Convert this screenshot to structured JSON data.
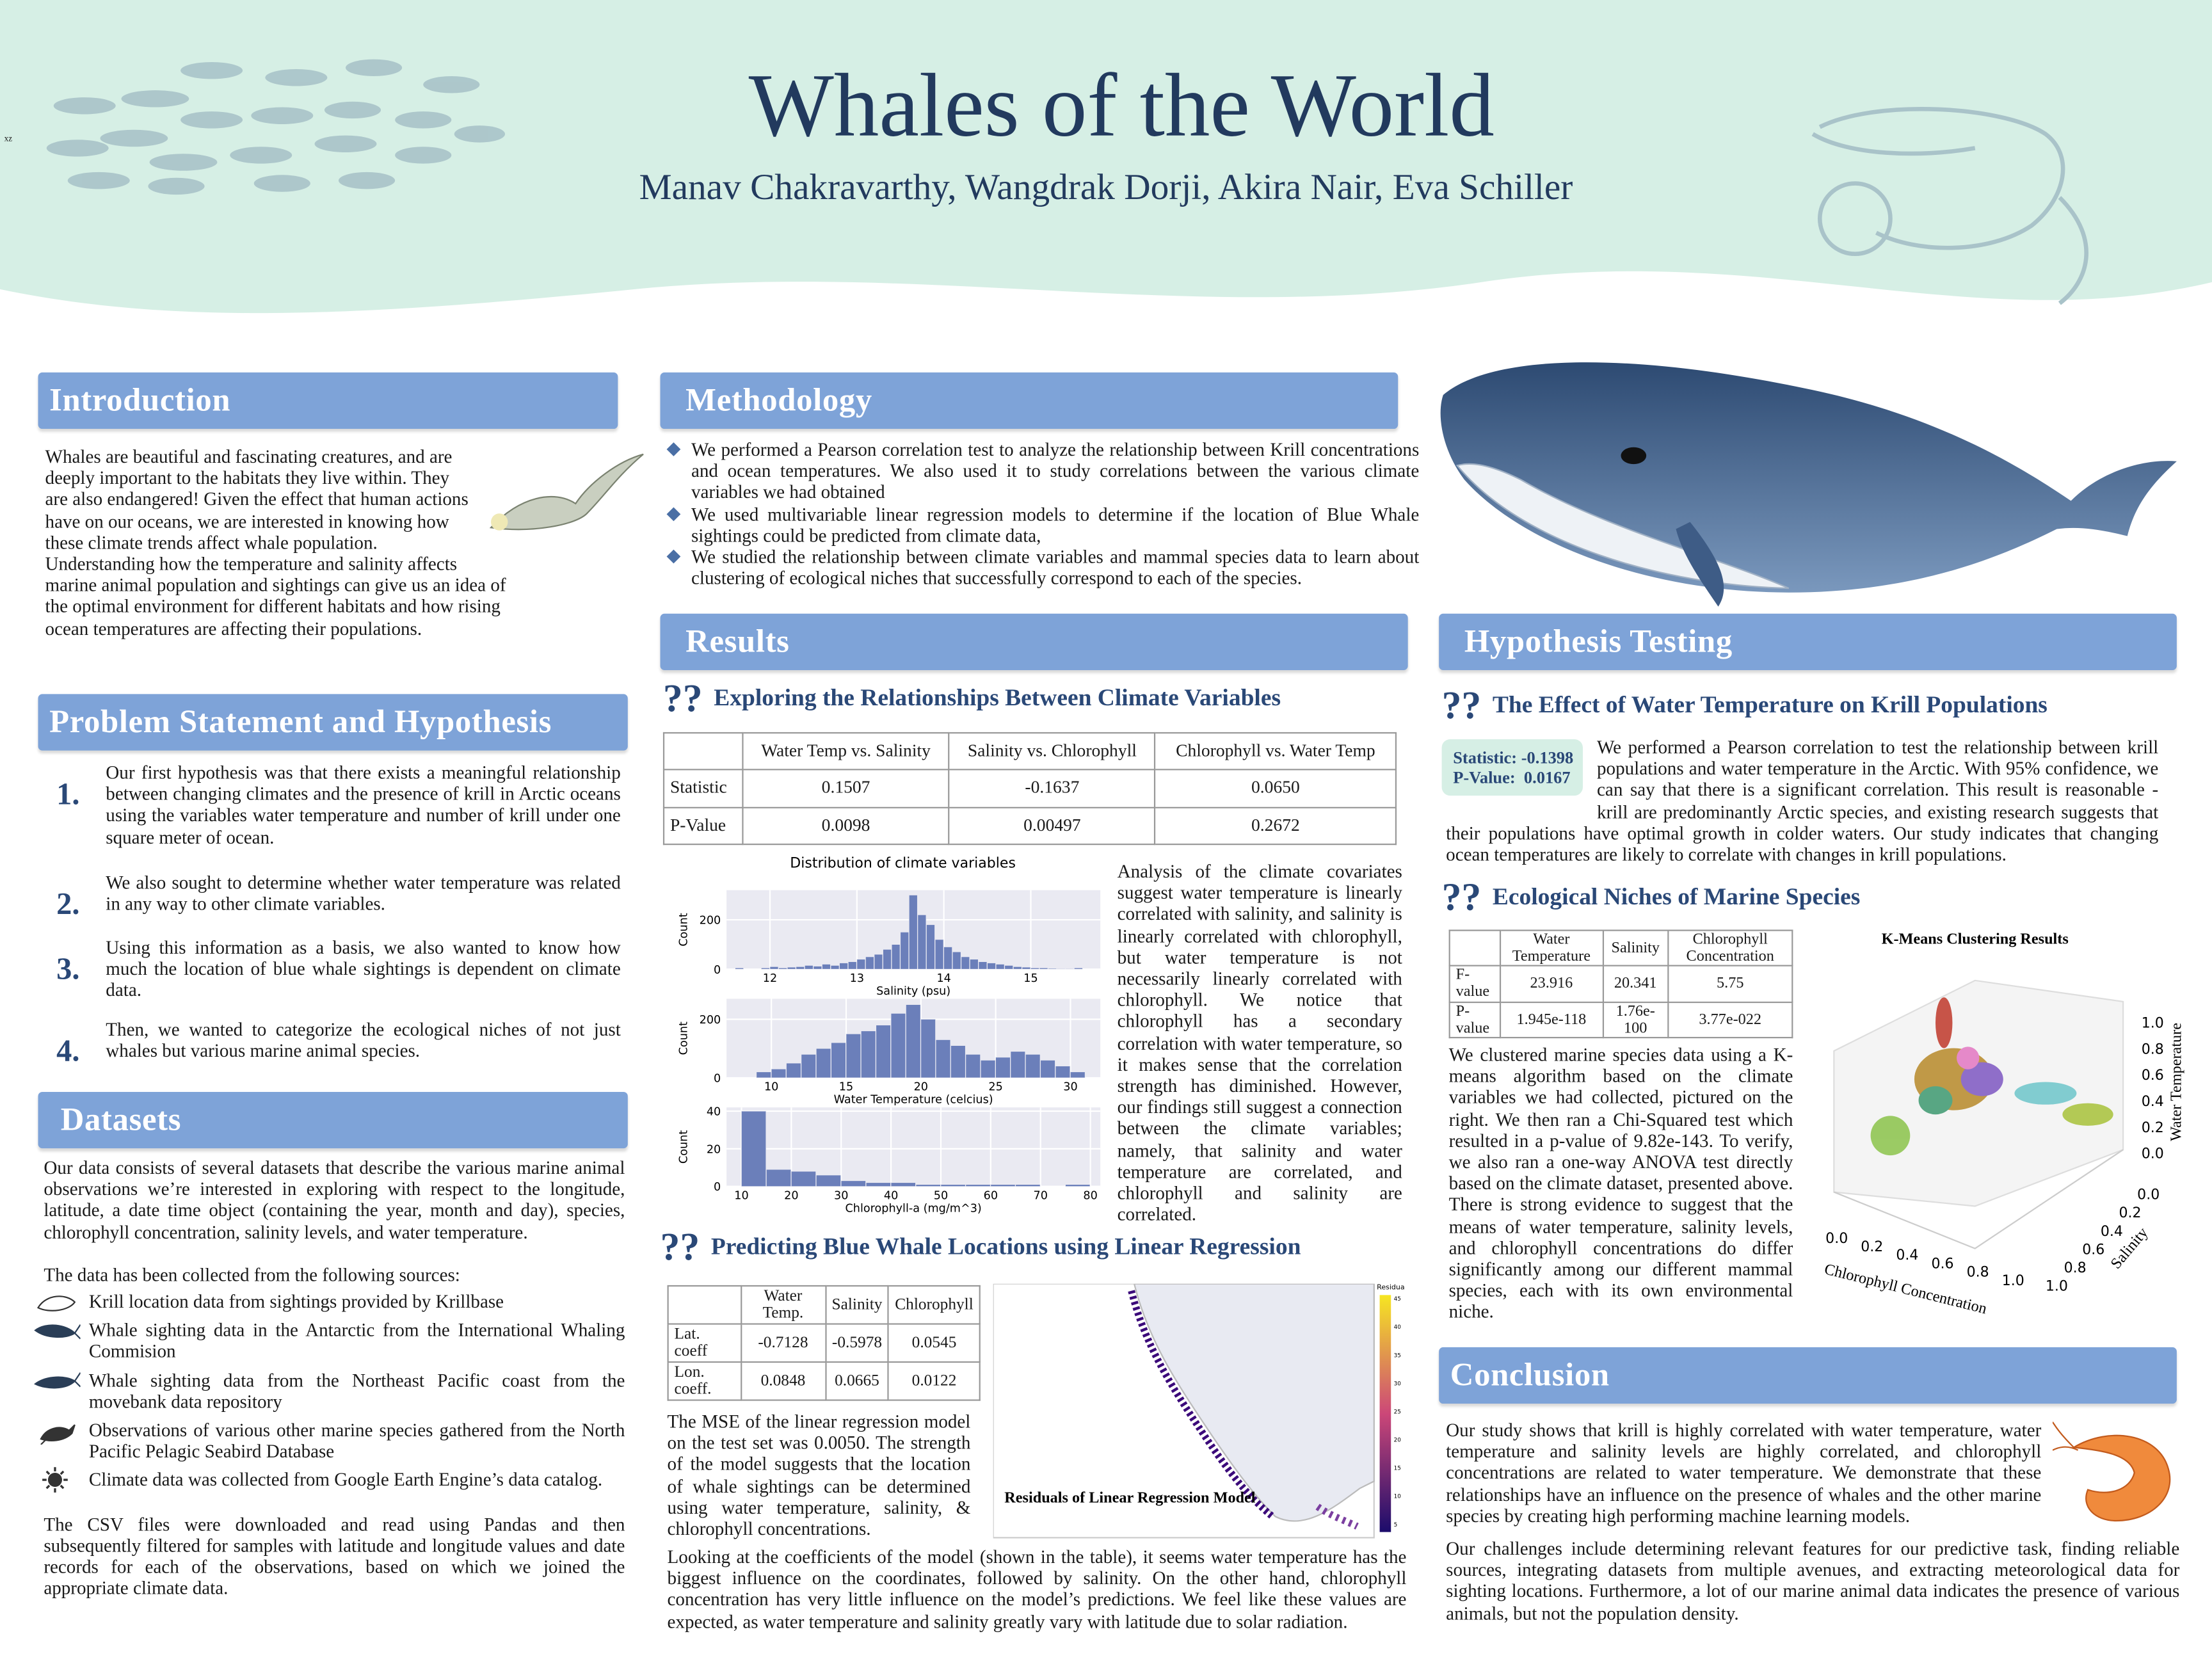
{
  "header": {
    "mark": "xz",
    "title": "Whales of the World",
    "authors": "Manav Chakravarthy, Wangdrak Dorji, Akira Nair, Eva Schiller"
  },
  "introduction": {
    "heading": "Introduction",
    "text": "Whales are beautiful and fascinating creatures, and are deeply important to the habitats they live within. They are also endangered! Given the effect that human actions have on our oceans, we are interested in knowing how these climate trends affect whale population. Understanding how the temperature and salinity affects marine animal population and sightings can give us an idea of the optimal environment for different habitats and how rising ocean temperatures are affecting their populations."
  },
  "problem": {
    "heading": "Problem Statement and Hypothesis",
    "items": [
      {
        "number": "1.",
        "text": "Our first hypothesis was that there exists a meaningful relationship between changing climates and the presence of krill in Arctic oceans using the variables water temperature and number of krill under one square meter of ocean."
      },
      {
        "number": "2.",
        "text": "We also sought to determine whether water temperature was related in any way to other climate variables."
      },
      {
        "number": "3.",
        "text": "Using this information as a basis, we also wanted to know how much the location of blue whale sightings is dependent on climate data."
      },
      {
        "number": "4.",
        "text": "Then, we wanted to categorize the ecological niches of not just whales but various marine animal species."
      }
    ]
  },
  "datasets": {
    "heading": "Datasets",
    "intro": "Our data consists of several datasets that describe the various marine animal observations we’re interested in exploring with respect to the longitude, latitude, a date time object (containing the year, month and day), species, chlorophyll concentration, salinity levels, and water temperature.",
    "sources_intro": "The data has been collected from the following sources:",
    "sources": [
      "Krill location data from sightings provided by Krillbase",
      "Whale sighting data in the Antarctic from the International Whaling Commision",
      "Whale sighting data from the Northeast Pacific coast from the movebank data repository",
      "Observations of various other marine species gathered from the North Pacific Pelagic Seabird Database",
      "Climate data was collected from Google Earth Engine’s data catalog."
    ],
    "closing": "The CSV files were downloaded and read using Pandas and then subsequently filtered for samples with latitude and longitude values and date records for each of the observations, based on which we joined the appropriate climate data."
  },
  "methodology": {
    "heading": "Methodology",
    "bullets": [
      "We performed a Pearson correlation test to analyze the relationship between Krill concentrations and ocean temperatures. We also used it to study correlations between the various climate variables we had obtained",
      "We used multivariable linear regression models to determine if the location of Blue Whale sightings could be predicted from climate data,",
      "We studied the relationship between climate variables and mammal species data to learn about clustering of ecological niches that successfully correspond to each of the species."
    ]
  },
  "results": {
    "heading": "Results",
    "sub1": {
      "icon": "??",
      "text": "Exploring the Relationships Between Climate Variables"
    },
    "table1": {
      "header": [
        "",
        "Water Temp vs. Salinity",
        "Salinity vs. Chlorophyll",
        "Chlorophyll vs. Water Temp"
      ],
      "rows": [
        [
          "Statistic",
          "0.1507",
          "-0.1637",
          "0.0650"
        ],
        [
          "P-Value",
          "0.0098",
          "0.00497",
          "0.2672"
        ]
      ]
    },
    "histogram": {
      "title": "Distribution of climate variables",
      "panels": [
        {
          "xlabel": "Salinity (psu)",
          "ylabel": "Count",
          "xlim": [
            11.5,
            15.8
          ],
          "ylim": [
            0,
            320
          ],
          "xticks": [
            12,
            13,
            14,
            15
          ],
          "yticks": [
            0,
            200
          ],
          "bins": [
            11.6,
            11.7,
            11.8,
            11.9,
            12.0,
            12.1,
            12.2,
            12.3,
            12.4,
            12.5,
            12.6,
            12.7,
            12.8,
            12.9,
            13.0,
            13.1,
            13.2,
            13.3,
            13.4,
            13.5,
            13.6,
            13.7,
            13.8,
            13.9,
            14.0,
            14.1,
            14.2,
            14.3,
            14.4,
            14.5,
            14.6,
            14.7,
            14.8,
            14.9,
            15.0,
            15.1,
            15.2,
            15.3,
            15.4,
            15.5,
            15.6
          ],
          "counts": [
            5,
            0,
            0,
            5,
            10,
            5,
            8,
            10,
            15,
            12,
            20,
            15,
            25,
            30,
            40,
            50,
            60,
            80,
            100,
            150,
            300,
            220,
            180,
            120,
            90,
            70,
            50,
            40,
            30,
            25,
            20,
            15,
            10,
            8,
            5,
            5,
            3,
            2,
            2,
            5
          ]
        },
        {
          "xlabel": "Water Temperature (celcius)",
          "ylabel": "Count",
          "xlim": [
            7,
            32
          ],
          "ylim": [
            0,
            270
          ],
          "xticks": [
            10,
            15,
            20,
            25,
            30
          ],
          "yticks": [
            0,
            200
          ],
          "bins": [
            9,
            10,
            11,
            12,
            13,
            14,
            15,
            16,
            17,
            18,
            19,
            20,
            21,
            22,
            23,
            24,
            25,
            26,
            27,
            28,
            29,
            30,
            31
          ],
          "counts": [
            20,
            30,
            50,
            80,
            100,
            120,
            150,
            160,
            180,
            220,
            250,
            200,
            130,
            110,
            80,
            60,
            70,
            90,
            80,
            60,
            40,
            20
          ]
        },
        {
          "xlabel": "Chlorophyll-a (mg/m^3)",
          "ylabel": "Count",
          "xlim": [
            7,
            82
          ],
          "ylim": [
            0,
            42
          ],
          "xticks": [
            10,
            20,
            30,
            40,
            50,
            60,
            70,
            80
          ],
          "yticks": [
            0,
            20,
            40
          ],
          "bins": [
            10,
            15,
            20,
            25,
            30,
            35,
            40,
            45,
            50,
            55,
            60,
            65,
            70,
            75,
            80
          ],
          "counts": [
            40,
            9,
            8,
            6,
            3,
            2,
            2,
            1,
            1,
            1,
            1,
            1,
            0,
            1
          ]
        }
      ]
    },
    "analysis": "Analysis of the climate covariates suggest water temperature is linearly correlated with salinity, and salinity is linearly correlated with chlorophyll, but water temperature is not necessarily linearly correlated with chlorophyll. We notice that chlorophyll has a secondary correlation with water temperature, so it makes sense that the correlation strength has diminished. However, our findings still suggest a connection between the climate variables; namely, that salinity and water temperature are correlated, and chlorophyll and salinity are correlated.",
    "sub2": {
      "icon": "??",
      "text": "Predicting Blue Whale Locations using Linear Regression"
    },
    "table2": {
      "header": [
        "",
        "Water Temp.",
        "Salinity",
        "Chlorophyll"
      ],
      "rows": [
        [
          "Lat. coeff",
          "-0.7128",
          "-0.5978",
          "0.0545"
        ],
        [
          "Lon. coeff.",
          "0.0848",
          "0.0665",
          "0.0122"
        ]
      ]
    },
    "mse": "The MSE of the linear regression model on the test set was 0.0050. The strength of the model suggests that the location of whale sightings can be determined using water temperature, salinity, & chlorophyll concentrations.",
    "map": {
      "caption": "Residuals of Linear Regression Model",
      "colorbar_label": "Residuals",
      "colorbar_ticks": [
        "45",
        "40",
        "35",
        "30",
        "25",
        "20",
        "15",
        "10",
        "5"
      ]
    },
    "coefficients": "Looking at the coefficients of the model (shown in the table), it seems water temperature has the biggest influence on the coordinates, followed by salinity. On the other hand, chlorophyll concentration has very little influence on the model’s predictions. We feel like these values are expected, as water temperature and salinity greatly vary with latitude due to solar radiation."
  },
  "hypothesis": {
    "heading": "Hypothesis Testing",
    "sub1": {
      "icon": "??",
      "text": "The Effect of Water Temperature on Krill Populations"
    },
    "stats": [
      "Statistic: -0.1398",
      "P-Value:  0.0167"
    ],
    "text1": "We performed a Pearson correlation to test the relationship between krill populations and water temperature in the Arctic. With 95% confidence, we can say that there is a significant correlation. This result is reasonable - krill are predominantly Arctic species, and existing research suggests that their populations have optimal growth in colder waters. Our study indicates that changing ocean temperatures are likely to correlate with changes in krill populations.",
    "sub2": {
      "icon": "??",
      "text": "Ecological Niches of Marine Species"
    },
    "table3": {
      "header": [
        "",
        "Water Temperature",
        "Salinity",
        "Chlorophyll Concentration"
      ],
      "rows": [
        [
          "F-value",
          "23.916",
          "20.341",
          "5.75"
        ],
        [
          "P-value",
          "1.945e-118",
          "1.76e-100",
          "3.77e-022"
        ]
      ]
    },
    "text2": "We clustered marine species data using a K-means algorithm based on the climate variables we had collected, pictured on the right. We then ran a Chi-Squared test which resulted in a p-value of 9.82e-143. To verify, we also ran a one-way ANOVA test directly based on the climate dataset, presented above. There is strong evidence to suggest that the means of water temperature, salinity levels, and chlorophyll concentrations do differ significantly among our different mammal species, each with its own environmental niche.",
    "kmeans": {
      "title": "K-Means Clustering Results",
      "x_label": "Chlorophyll Concentration",
      "y_label": "Salinity",
      "z_label": "Water Temperature",
      "x_ticks": [
        "0.0",
        "0.2",
        "0.4",
        "0.6",
        "0.8",
        "1.0"
      ],
      "y_ticks": [
        "0.0",
        "0.2",
        "0.4",
        "0.6",
        "0.8",
        "1.0"
      ],
      "z_ticks": [
        "0.0",
        "0.2",
        "0.4",
        "0.6",
        "0.8",
        "1.0"
      ]
    }
  },
  "conclusion": {
    "heading": "Conclusion",
    "p1": "Our study shows that krill is highly correlated with water temperature, water temperature and salinity levels are highly correlated, and chlorophyll concentrations are related to water temperature. We demonstrate that these relationships have an influence on the presence of whales and the other marine species by creating high performing machine learning models.",
    "p2": "Our challenges include determining relevant features for our predictive task, finding reliable sources, integrating datasets from multiple avenues, and extracting meteorological data for sighting locations. Furthermore, a lot of our marine animal data indicates the presence of various animals, but not the population density."
  }
}
